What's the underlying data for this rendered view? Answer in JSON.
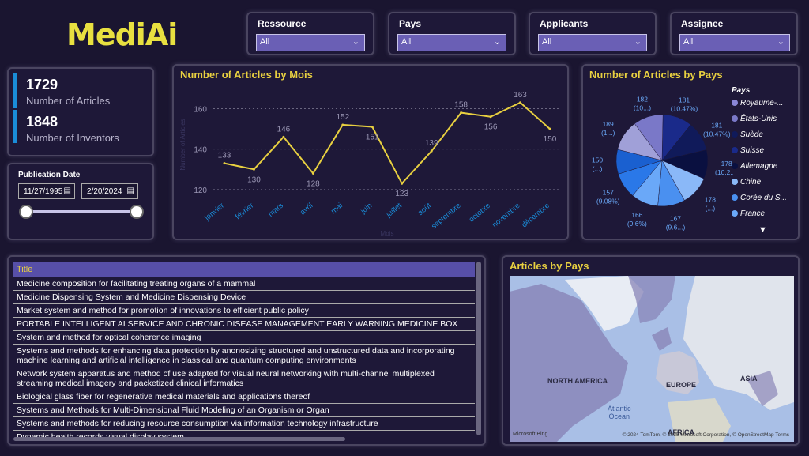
{
  "logo": "MediAi",
  "slicers": [
    {
      "title": "Ressource",
      "value": "All"
    },
    {
      "title": "Pays",
      "value": "All"
    },
    {
      "title": "Applicants",
      "value": "All"
    },
    {
      "title": "Assignee",
      "value": "All"
    }
  ],
  "kpis": [
    {
      "value": "1729",
      "label": "Number of Articles"
    },
    {
      "value": "1848",
      "label": "Number of Inventors"
    }
  ],
  "publication_date": {
    "title": "Publication Date",
    "start": "11/27/1995",
    "end": "2/20/2024",
    "range_start_fraction": 0.0,
    "range_end_fraction": 1.0
  },
  "line_chart": {
    "title": "Number of Articles by Mois",
    "ylabel": "Number of Articles",
    "xlabel": "Mois"
  },
  "pie_chart": {
    "title": "Number of Articles by Pays",
    "legend_title": "Pays",
    "labels": [
      "181 (10.47%)",
      "181 (10.47%)",
      "178 (10.2...)",
      "178 (...)",
      "167 (9.6...)",
      "166 (9.6%)",
      "157 (9.08%)",
      "150 (...)",
      "189 (1...)",
      "182 (10...)"
    ],
    "legend": [
      {
        "name": "Royaume-...",
        "color": "#8a86d8"
      },
      {
        "name": "États-Unis",
        "color": "#7a78c8"
      },
      {
        "name": "Suède",
        "color": "#101a5a"
      },
      {
        "name": "Suisse",
        "color": "#1a2a8a"
      },
      {
        "name": "Allemagne",
        "color": "#0a1040"
      },
      {
        "name": "Chine",
        "color": "#8ab8f8"
      },
      {
        "name": "Corée du S...",
        "color": "#4a90f0"
      },
      {
        "name": "France",
        "color": "#6aa8f8"
      }
    ]
  },
  "chart_data": {
    "type": "line",
    "title": "Number of Articles by Mois",
    "xlabel": "Mois",
    "ylabel": "Number of Articles",
    "categories": [
      "janvier",
      "février",
      "mars",
      "avril",
      "mai",
      "juin",
      "juillet",
      "août",
      "septembre",
      "octobre",
      "novembre",
      "décembre"
    ],
    "values": [
      133,
      130,
      146,
      128,
      152,
      151,
      123,
      139,
      158,
      156,
      163,
      150
    ],
    "yticks": [
      120,
      140,
      160
    ],
    "ylim": [
      118,
      168
    ],
    "line_color": "#e8d040"
  },
  "table": {
    "header": "Title",
    "rows": [
      "Medicine composition for facilitating treating organs of a mammal",
      "Medicine Dispensing System and Medicine Dispensing Device",
      "Market system and method for promotion of innovations to efficient public policy",
      "PORTABLE INTELLIGENT AI SERVICE AND CHRONIC DISEASE MANAGEMENT EARLY WARNING MEDICINE BOX",
      "System and method for optical coherence imaging",
      "Systems and methods for enhancing data protection by anonosizing structured and unstructured data and incorporating machine learning and artificial intelligence in classical and quantum computing environments",
      "Network system apparatus and method of use adapted for visual neural networking with multi-channel multiplexed streaming medical imagery and packetized clinical informatics",
      "Biological glass fiber for regenerative medical materials and applications thereof",
      "Systems and Methods for Multi-Dimensional Fluid Modeling of an Organism or Organ",
      "Systems and methods for reducing resource consumption via information technology infrastructure",
      "Dynamic health records visual display system"
    ]
  },
  "map": {
    "title": "Articles by Pays",
    "labels": [
      "NORTH AMERICA",
      "EUROPE",
      "ASIA",
      "AFRICA"
    ],
    "water": [
      "Atlantic",
      "Ocean"
    ],
    "attribution": "© 2024 TomTom, © 2025 Microsoft Corporation, © OpenStreetMap  Terms",
    "provider": "Microsoft Bing"
  }
}
